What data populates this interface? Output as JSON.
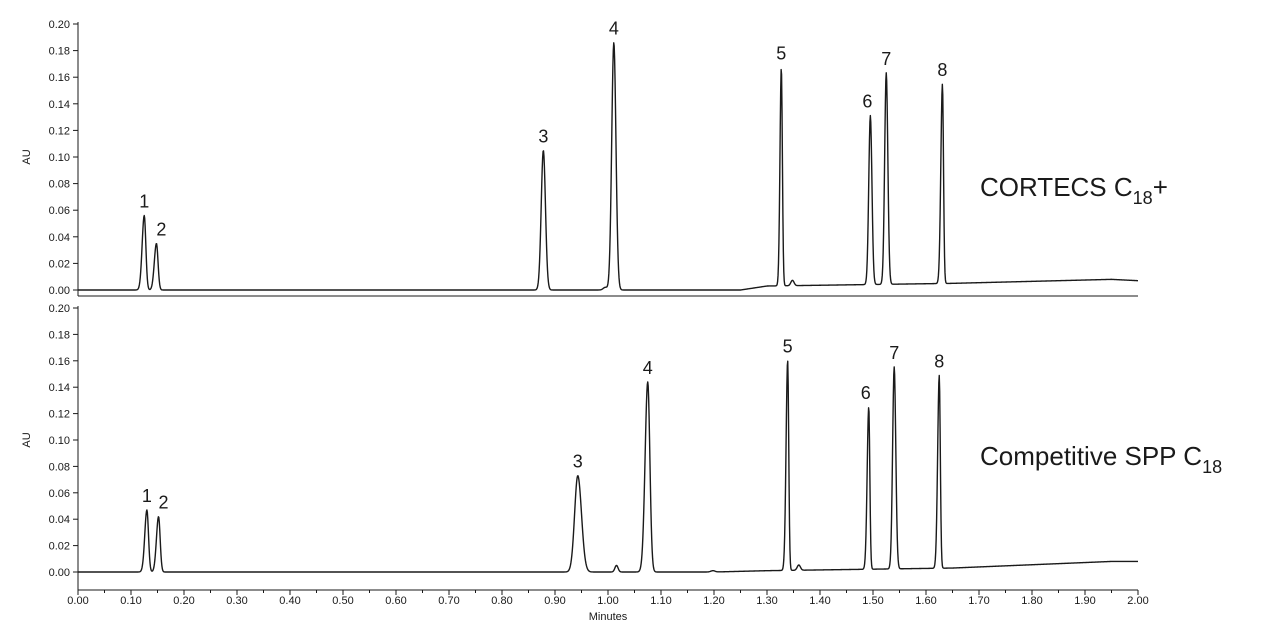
{
  "chart_data": [
    {
      "type": "line",
      "column_label": {
        "main": "CORTECS C",
        "subscript": "18",
        "suffix": "+"
      },
      "ylabel": "AU",
      "ylim": [
        0,
        0.2
      ],
      "yticks": [
        "0.00",
        "0.02",
        "0.04",
        "0.06",
        "0.08",
        "0.10",
        "0.12",
        "0.14",
        "0.16",
        "0.18",
        "0.20"
      ],
      "baseline": 0.0,
      "drift": [
        [
          0,
          0.0
        ],
        [
          1.25,
          0.0
        ],
        [
          1.3,
          0.003
        ],
        [
          1.65,
          0.005
        ],
        [
          1.95,
          0.008
        ],
        [
          2.0,
          0.007
        ]
      ],
      "peaks": [
        {
          "label": "1",
          "rt": 0.125,
          "height": 0.056,
          "width": 0.004,
          "tail": 0.003
        },
        {
          "label": "2",
          "rt": 0.148,
          "height": 0.035,
          "width": 0.004,
          "tail": 0.003
        },
        {
          "label": "3",
          "rt": 0.878,
          "height": 0.105,
          "width": 0.004,
          "tail": 0.004
        },
        {
          "label": "4",
          "rt": 1.011,
          "height": 0.186,
          "width": 0.004,
          "tail": 0.004
        },
        {
          "label": "5",
          "rt": 1.327,
          "height": 0.164,
          "width": 0.0025,
          "tail": 0.002
        },
        {
          "label": "6",
          "rt": 1.495,
          "height": 0.127,
          "width": 0.003,
          "tail": 0.003
        },
        {
          "label": "7",
          "rt": 1.525,
          "height": 0.159,
          "width": 0.003,
          "tail": 0.003
        },
        {
          "label": "8",
          "rt": 1.631,
          "height": 0.15,
          "width": 0.003,
          "tail": 0.002
        }
      ],
      "minor_peaks": [
        {
          "rt": 0.995,
          "height": 0.002,
          "width": 0.004
        },
        {
          "rt": 1.348,
          "height": 0.004,
          "width": 0.003
        }
      ]
    },
    {
      "type": "line",
      "column_label": {
        "main": "Competitive SPP C",
        "subscript": "18",
        "suffix": ""
      },
      "ylabel": "AU",
      "ylim": [
        0,
        0.2
      ],
      "yticks": [
        "0.00",
        "0.02",
        "0.04",
        "0.06",
        "0.08",
        "0.10",
        "0.12",
        "0.14",
        "0.16",
        "0.18",
        "0.20"
      ],
      "xlabel": "Minutes",
      "xlim": [
        0,
        2.0
      ],
      "xticks": [
        "0.00",
        "0.10",
        "0.20",
        "0.30",
        "0.40",
        "0.50",
        "0.60",
        "0.70",
        "0.80",
        "0.90",
        "1.00",
        "1.10",
        "1.20",
        "1.30",
        "1.40",
        "1.50",
        "1.60",
        "1.70",
        "1.80",
        "1.90",
        "2.00"
      ],
      "baseline": 0.0,
      "drift": [
        [
          0,
          0.0
        ],
        [
          1.2,
          0.0
        ],
        [
          1.3,
          0.001
        ],
        [
          1.65,
          0.003
        ],
        [
          1.95,
          0.008
        ],
        [
          2.0,
          0.008
        ]
      ],
      "peaks": [
        {
          "label": "1",
          "rt": 0.13,
          "height": 0.047,
          "width": 0.004,
          "tail": 0.003
        },
        {
          "label": "2",
          "rt": 0.152,
          "height": 0.042,
          "width": 0.004,
          "tail": 0.003
        },
        {
          "label": "3",
          "rt": 0.943,
          "height": 0.073,
          "width": 0.006,
          "tail": 0.007
        },
        {
          "label": "4",
          "rt": 1.075,
          "height": 0.144,
          "width": 0.005,
          "tail": 0.004
        },
        {
          "label": "5",
          "rt": 1.339,
          "height": 0.159,
          "width": 0.003,
          "tail": 0.002
        },
        {
          "label": "6",
          "rt": 1.492,
          "height": 0.123,
          "width": 0.003,
          "tail": 0.002
        },
        {
          "label": "7",
          "rt": 1.54,
          "height": 0.153,
          "width": 0.003,
          "tail": 0.003
        },
        {
          "label": "8",
          "rt": 1.625,
          "height": 0.146,
          "width": 0.003,
          "tail": 0.002
        }
      ],
      "minor_peaks": [
        {
          "rt": 1.016,
          "height": 0.005,
          "width": 0.003
        },
        {
          "rt": 1.36,
          "height": 0.004,
          "width": 0.003
        },
        {
          "rt": 1.198,
          "height": 0.001,
          "width": 0.004
        }
      ]
    }
  ]
}
